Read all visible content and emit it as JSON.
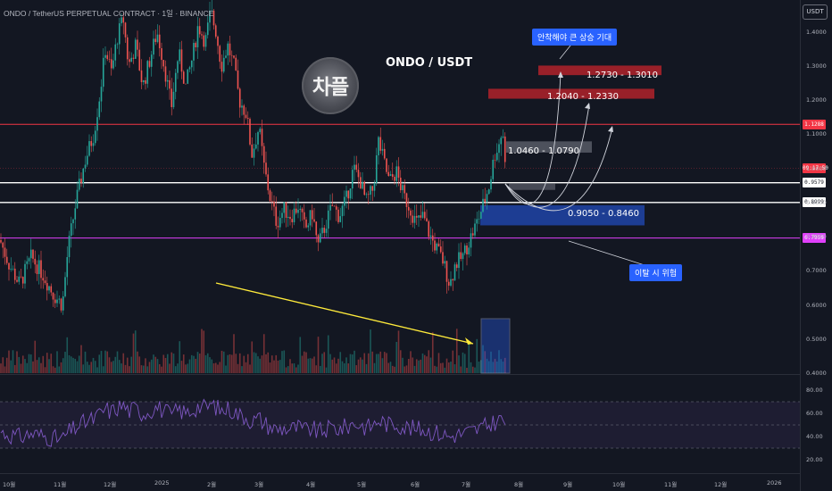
{
  "header": {
    "symbol_line": "ONDO / TetherUS PERPETUAL CONTRACT · 1일 · BINANCE"
  },
  "currency_button": "USDT",
  "title": "ONDO / USDT",
  "logo_text": "차플",
  "colors": {
    "bg": "#131722",
    "up": "#26a69a",
    "down": "#ef5350",
    "resistance": "#f23645",
    "support_white": "#ffffff",
    "pink_line": "#e040fb",
    "target_zone": "#b2222a",
    "support_zone": "#1e3f9a",
    "volume_box": "#2962ff",
    "rsi_line": "#7e57c2",
    "arrow_yellow": "#ffeb3b",
    "annot_blue": "#2962ff"
  },
  "zones": {
    "target_top": {
      "label": "1.2730 - 1.3010",
      "low": 1.273,
      "high": 1.301
    },
    "target_mid": {
      "label": "1.2040 - 1.2330",
      "low": 1.204,
      "high": 1.233
    },
    "gray_zone": {
      "label": "1.0460 - 1.0790",
      "low": 1.046,
      "high": 1.079
    },
    "support_zone": {
      "label": "0.9050 - 0.8460",
      "low": 0.846,
      "high": 0.905
    }
  },
  "annotations": {
    "top_note": "안착해야 큰 상승 기대",
    "bottom_note": "이탈 시 위험"
  },
  "levels": [
    {
      "value": 1.1288,
      "label": "1.1288",
      "color": "#f23645",
      "text_color": "#ffffff"
    },
    {
      "value": 1.0,
      "label": "09:17:50",
      "color": "#f23645",
      "text_color": "#ffffff"
    },
    {
      "value": 0.9579,
      "label": "0.9579",
      "color": "#ffffff",
      "text_color": "#131722"
    },
    {
      "value": 0.8999,
      "label": "0.8999",
      "color": "#ffffff",
      "text_color": "#131722"
    },
    {
      "value": 0.7959,
      "label": "0.7959",
      "color": "#e040fb",
      "text_color": "#ffffff"
    }
  ],
  "chart_data": [
    {
      "type": "candlestick",
      "title": "ONDO / USDT",
      "y_ticks": [
        "1.4000",
        "1.3000",
        "1.2000",
        "1.1000",
        "1.0000",
        "0.9000",
        "0.8000",
        "0.7000",
        "0.6000",
        "0.5000",
        "0.4000"
      ],
      "x_ticks": [
        "10월",
        "11월",
        "12월",
        "2025",
        "2월",
        "3월",
        "4월",
        "5월",
        "6월",
        "7월",
        "8월",
        "9월",
        "10월",
        "11월",
        "12월",
        "2026"
      ],
      "ylim": [
        0.4,
        1.48
      ],
      "grid": false,
      "close_path": [
        [
          0,
          0.79
        ],
        [
          10,
          0.72
        ],
        [
          22,
          0.66
        ],
        [
          35,
          0.74
        ],
        [
          48,
          0.69
        ],
        [
          60,
          0.63
        ],
        [
          70,
          0.6
        ],
        [
          76,
          0.76
        ],
        [
          85,
          0.9
        ],
        [
          95,
          1.02
        ],
        [
          105,
          1.1
        ],
        [
          112,
          1.22
        ],
        [
          118,
          1.35
        ],
        [
          125,
          1.28
        ],
        [
          131,
          1.38
        ],
        [
          138,
          1.44
        ],
        [
          144,
          1.3
        ],
        [
          152,
          1.36
        ],
        [
          160,
          1.24
        ],
        [
          168,
          1.32
        ],
        [
          176,
          1.4
        ],
        [
          184,
          1.3
        ],
        [
          192,
          1.18
        ],
        [
          200,
          1.34
        ],
        [
          208,
          1.24
        ],
        [
          216,
          1.33
        ],
        [
          222,
          1.42
        ],
        [
          230,
          1.37
        ],
        [
          236,
          1.46
        ],
        [
          242,
          1.4
        ],
        [
          248,
          1.3
        ],
        [
          255,
          1.36
        ],
        [
          262,
          1.3
        ],
        [
          268,
          1.2
        ],
        [
          276,
          1.16
        ],
        [
          282,
          1.04
        ],
        [
          290,
          1.12
        ],
        [
          296,
          1.0
        ],
        [
          302,
          0.92
        ],
        [
          310,
          0.84
        ],
        [
          318,
          0.88
        ],
        [
          326,
          0.86
        ],
        [
          334,
          0.89
        ],
        [
          342,
          0.82
        ],
        [
          350,
          0.87
        ],
        [
          356,
          0.77
        ],
        [
          364,
          0.83
        ],
        [
          372,
          0.89
        ],
        [
          380,
          0.86
        ],
        [
          388,
          0.91
        ],
        [
          396,
          1.0
        ],
        [
          404,
          0.96
        ],
        [
          410,
          0.9
        ],
        [
          418,
          0.94
        ],
        [
          424,
          1.08
        ],
        [
          430,
          1.02
        ],
        [
          436,
          0.96
        ],
        [
          444,
          0.99
        ],
        [
          452,
          0.92
        ],
        [
          460,
          0.88
        ],
        [
          466,
          0.84
        ],
        [
          474,
          0.86
        ],
        [
          482,
          0.8
        ],
        [
          490,
          0.76
        ],
        [
          496,
          0.73
        ],
        [
          504,
          0.66
        ],
        [
          510,
          0.72
        ],
        [
          518,
          0.74
        ],
        [
          526,
          0.79
        ],
        [
          534,
          0.84
        ],
        [
          542,
          0.9
        ],
        [
          548,
          0.95
        ],
        [
          554,
          1.04
        ],
        [
          560,
          1.08
        ],
        [
          563,
          1.12
        ],
        [
          566,
          1.0
        ],
        [
          568,
          0.96
        ]
      ],
      "volume_ylim": [
        0,
        1
      ],
      "rsi": {
        "ylim": [
          10,
          90
        ],
        "levels": [
          70,
          50,
          30
        ],
        "y_ticks": [
          "80.00",
          "60.00",
          "40.00",
          "20.00"
        ]
      }
    }
  ]
}
